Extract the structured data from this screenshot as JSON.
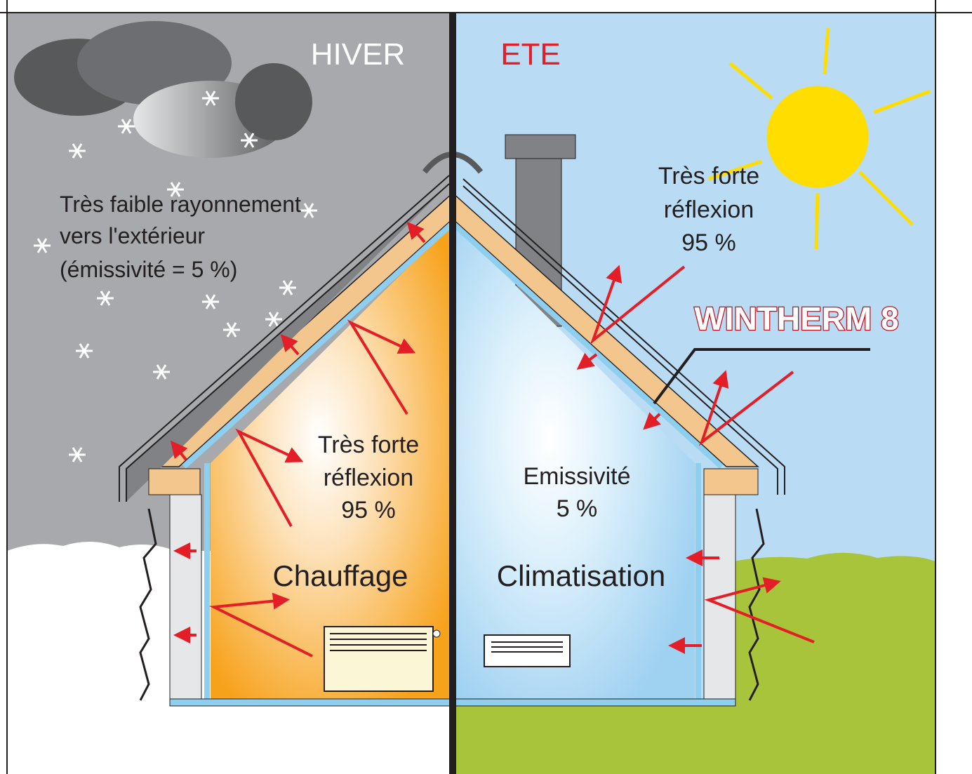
{
  "winter": {
    "title": "HIVER",
    "note": [
      "Très faible rayonnement",
      "vers l'extérieur",
      "(émissivité = 5 %)"
    ],
    "reflection": [
      "Très forte",
      "réflexion",
      "95 %"
    ],
    "label": "Chauffage"
  },
  "summer": {
    "title": "ETE",
    "reflection": [
      "Très forte",
      "réflexion",
      "95 %"
    ],
    "emissivity": [
      "Emissivité",
      "5 %"
    ],
    "label": "Climatisation"
  },
  "product": "WINTHERM 8"
}
